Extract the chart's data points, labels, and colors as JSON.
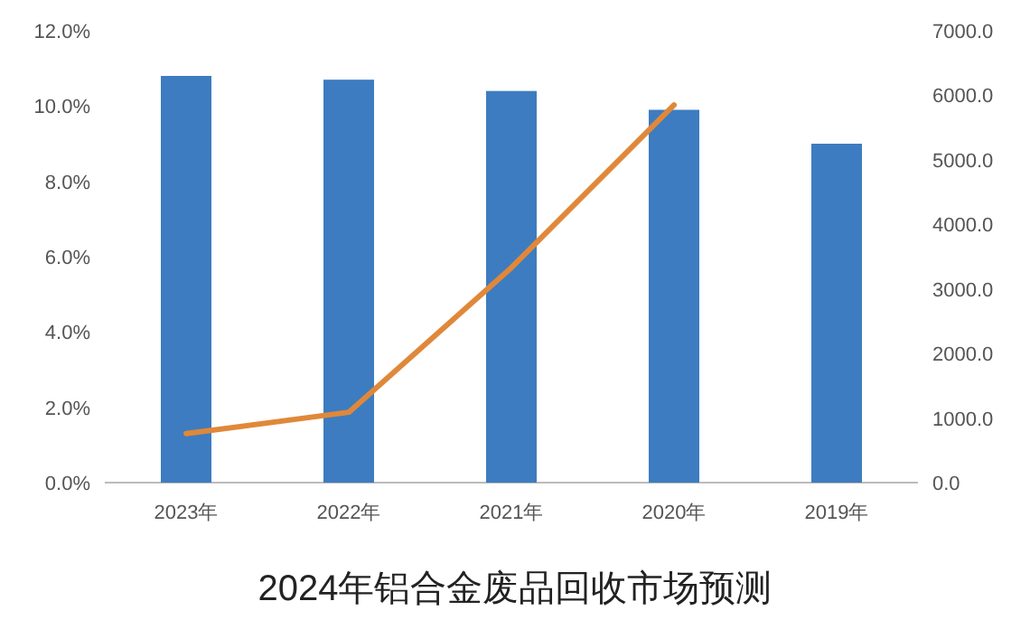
{
  "chart_data": {
    "type": "bar",
    "title": "2024年铝合金废品回收市场预测",
    "categories": [
      "2023年",
      "2022年",
      "2021年",
      "2020年",
      "2019年"
    ],
    "series": [
      {
        "color": "#3d7cc0",
        "values": [
          10.8,
          10.7,
          10.4,
          9.9,
          9.0
        ]
      },
      {
        "type": "line",
        "axis": "y2",
        "color": "#e0883a",
        "values": [
          760,
          1090,
          3330,
          5850,
          null
        ]
      }
    ],
    "ylim": [
      0,
      12
    ],
    "yticks": [
      {
        "value": 0,
        "label": "0.0%"
      },
      {
        "value": 2,
        "label": "2.0%"
      },
      {
        "value": 4,
        "label": "4.0%"
      },
      {
        "value": 6,
        "label": "6.0%"
      },
      {
        "value": 8,
        "label": "8.0%"
      },
      {
        "value": 10,
        "label": "10.0%"
      },
      {
        "value": 12,
        "label": "12.0%"
      }
    ],
    "y2lim": [
      0,
      7000
    ],
    "y2ticks": [
      {
        "value": 0,
        "label": "0.0"
      },
      {
        "value": 1000,
        "label": "1000.0"
      },
      {
        "value": 2000,
        "label": "2000.0"
      },
      {
        "value": 3000,
        "label": "3000.0"
      },
      {
        "value": 4000,
        "label": "4000.0"
      },
      {
        "value": 5000,
        "label": "5000.0"
      },
      {
        "value": 6000,
        "label": "6000.0"
      },
      {
        "value": 7000,
        "label": "7000.0"
      }
    ],
    "grid": false,
    "marker": "none",
    "line_style": "solid"
  }
}
